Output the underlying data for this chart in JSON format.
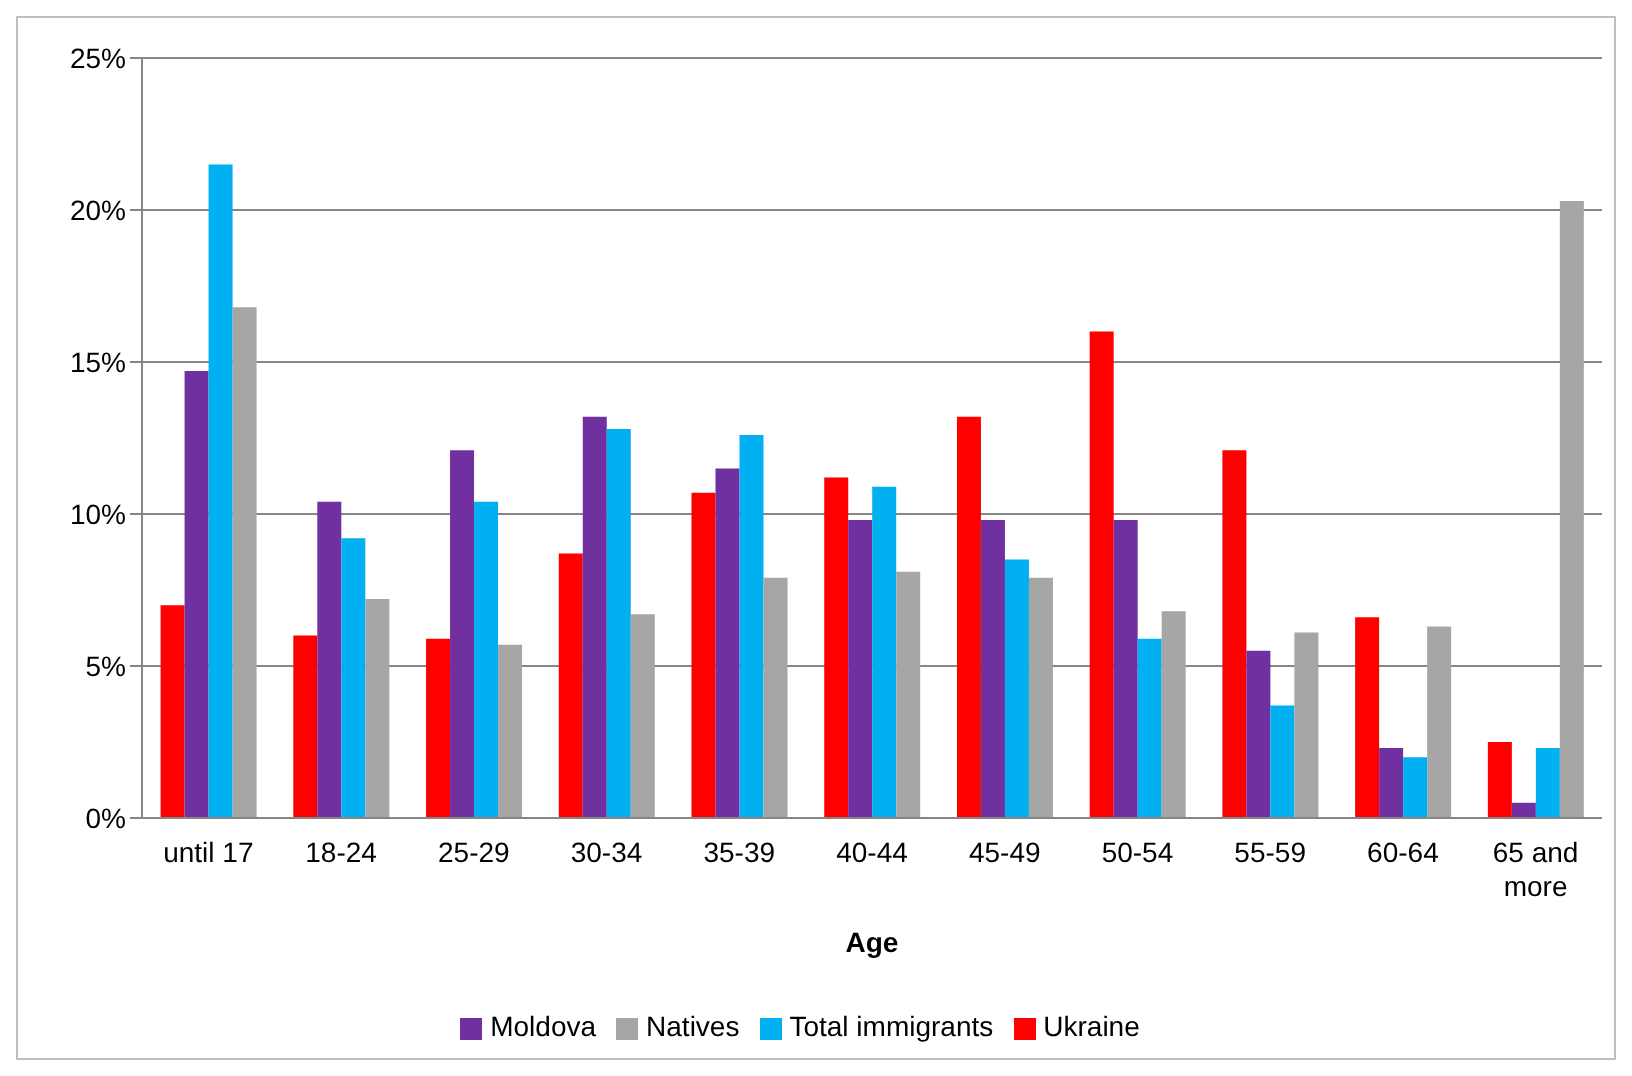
{
  "chart_data": {
    "type": "bar",
    "xlabel": "Age",
    "categories": [
      "until 17",
      "18-24",
      "25-29",
      "30-34",
      "35-39",
      "40-44",
      "45-49",
      "50-54",
      "55-59",
      "60-64",
      "65 and more"
    ],
    "series": [
      {
        "name": "Ukraine",
        "color": "#ff0000",
        "values": [
          7.0,
          6.0,
          5.9,
          8.7,
          10.7,
          11.2,
          13.2,
          16.0,
          12.1,
          6.6,
          2.5
        ]
      },
      {
        "name": "Moldova",
        "color": "#7030a0",
        "values": [
          14.7,
          10.4,
          12.1,
          13.2,
          11.5,
          9.8,
          9.8,
          9.8,
          5.5,
          2.3,
          0.5
        ]
      },
      {
        "name": "Total immigrants",
        "color": "#00b0f0",
        "values": [
          21.5,
          9.2,
          10.4,
          12.8,
          12.6,
          10.9,
          8.5,
          5.9,
          3.7,
          2.0,
          2.3
        ]
      },
      {
        "name": "Natives",
        "color": "#a6a6a6",
        "values": [
          16.8,
          7.2,
          5.7,
          6.7,
          7.9,
          8.1,
          7.9,
          6.8,
          6.1,
          6.3,
          20.3
        ]
      }
    ],
    "ylim": [
      0,
      25
    ],
    "yticks": [
      {
        "value": 0,
        "label": "0%"
      },
      {
        "value": 5,
        "label": "5%"
      },
      {
        "value": 10,
        "label": "10%"
      },
      {
        "value": 15,
        "label": "15%"
      },
      {
        "value": 20,
        "label": "20%"
      },
      {
        "value": 25,
        "label": "25%"
      }
    ],
    "grid": "y",
    "legend": "bottom"
  }
}
